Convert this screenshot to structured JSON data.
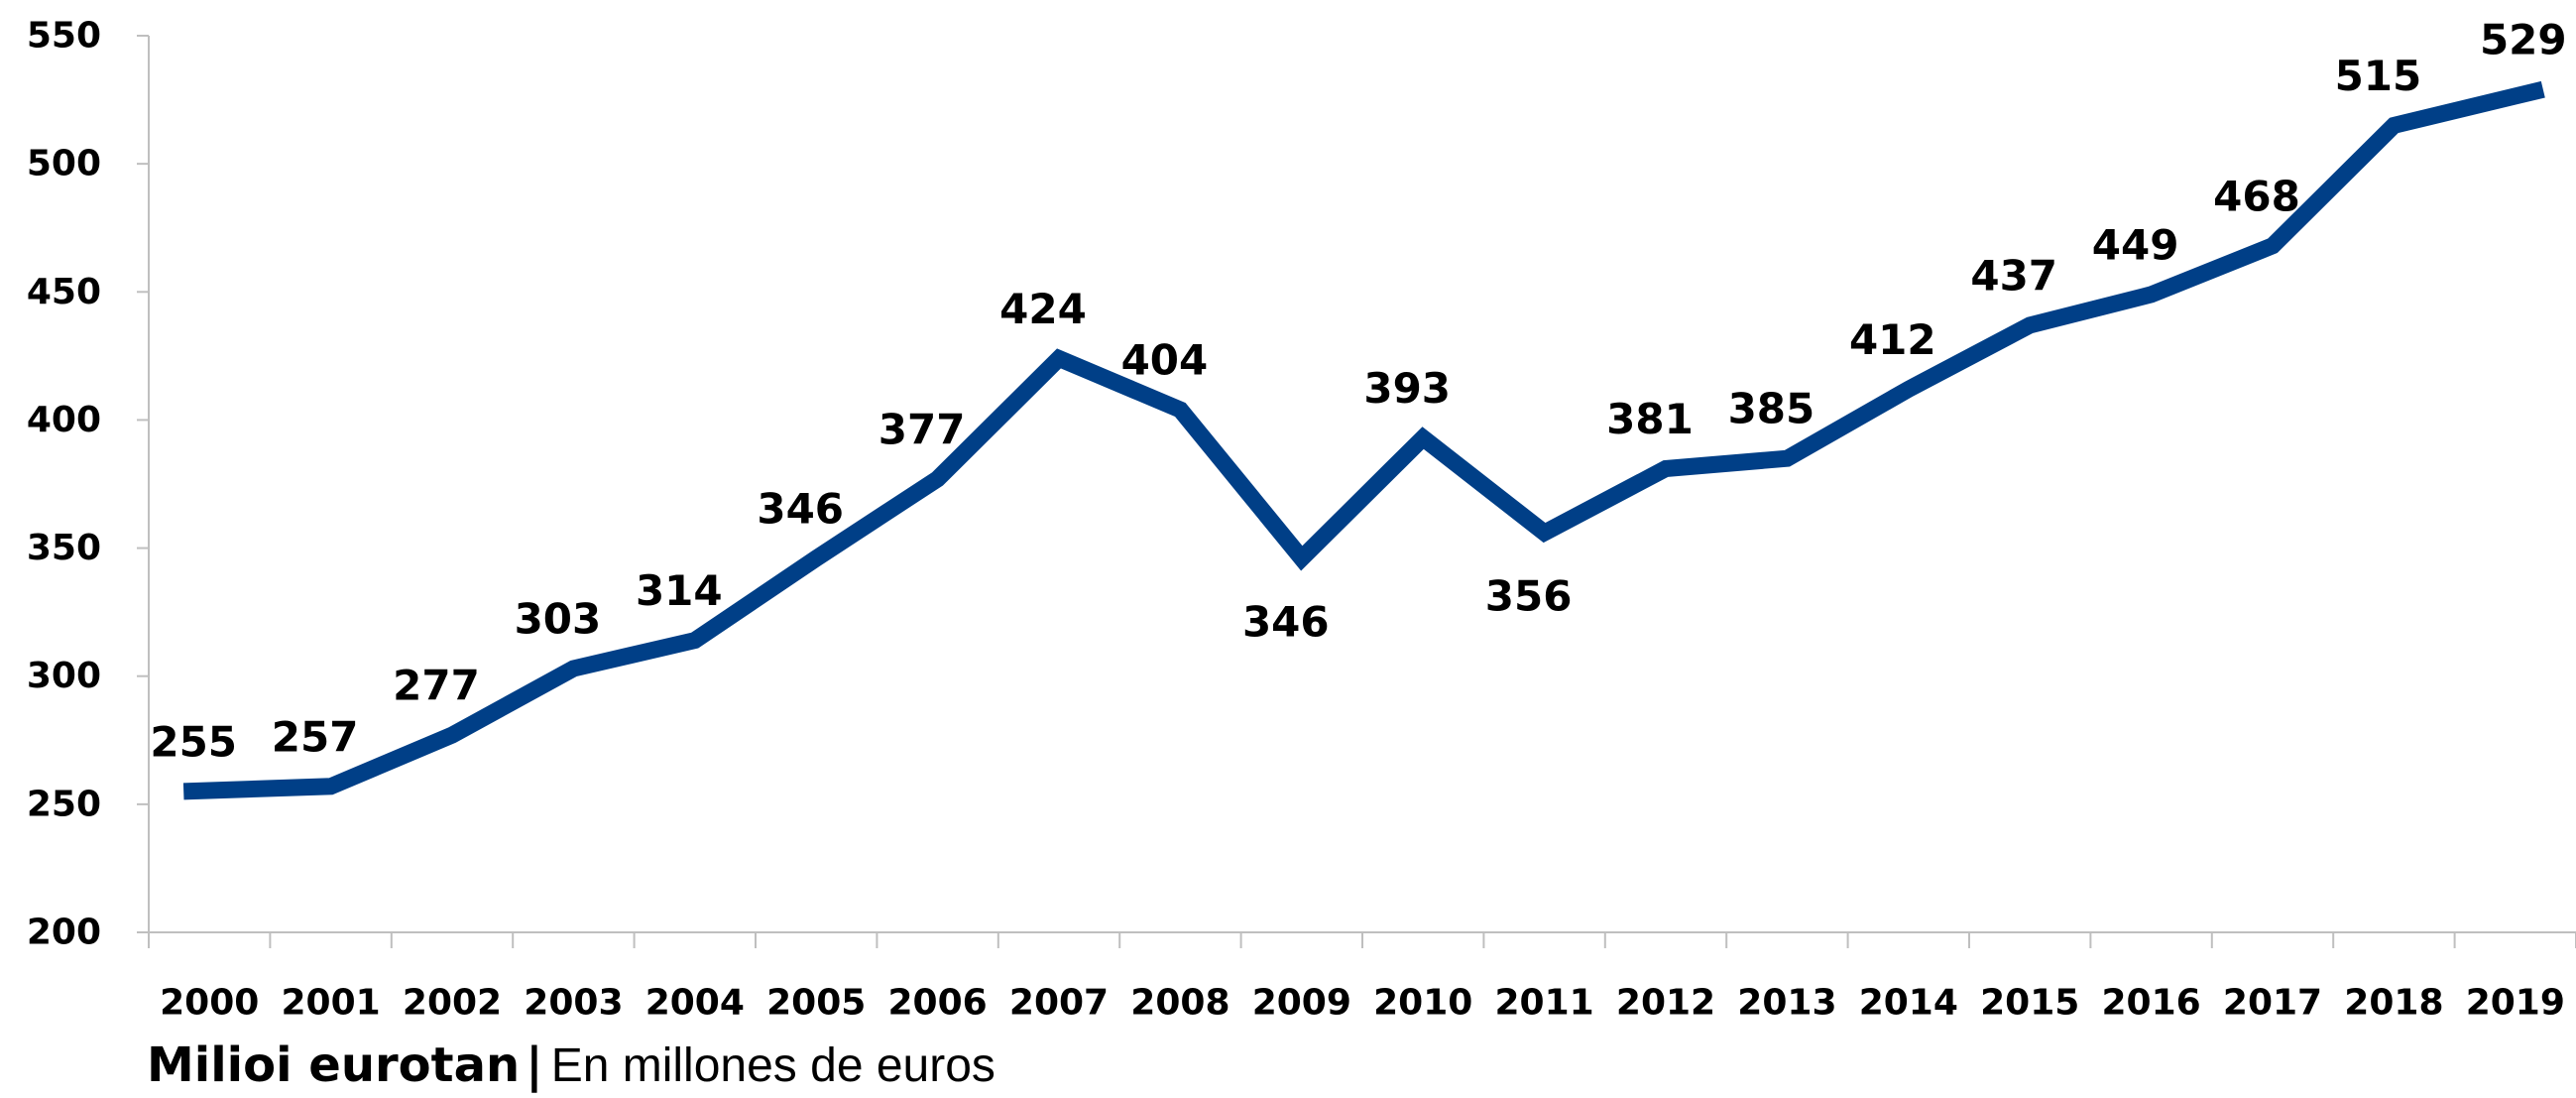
{
  "chart_data": {
    "type": "line",
    "categories": [
      "2000",
      "2001",
      "2002",
      "2003",
      "2004",
      "2005",
      "2006",
      "2007",
      "2008",
      "2009",
      "2010",
      "2011",
      "2012",
      "2013",
      "2014",
      "2015",
      "2016",
      "2017",
      "2018",
      "2019"
    ],
    "series": [
      {
        "values": [
          255,
          257,
          277,
          303,
          314,
          346,
          377,
          424,
          404,
          346,
          393,
          356,
          381,
          385,
          412,
          437,
          449,
          468,
          515,
          529
        ],
        "color": "#003f87"
      }
    ],
    "data_labels": [
      "255",
      "257",
      "277",
      "303",
      "314",
      "346",
      "377",
      "424",
      "404",
      "346",
      "393",
      "356",
      "381",
      "385",
      "412",
      "437",
      "449",
      "468",
      "515",
      "529"
    ],
    "ylim": [
      200,
      550
    ],
    "yticks": [
      200,
      250,
      300,
      350,
      400,
      450,
      500,
      550
    ],
    "ytick_labels": [
      "200",
      "250",
      "300",
      "350",
      "400",
      "450",
      "500",
      "550"
    ],
    "grid": false,
    "legend": "none"
  },
  "caption": {
    "bold": "Milioi eurotan",
    "separator": "|",
    "regular": "En millones de euros"
  }
}
